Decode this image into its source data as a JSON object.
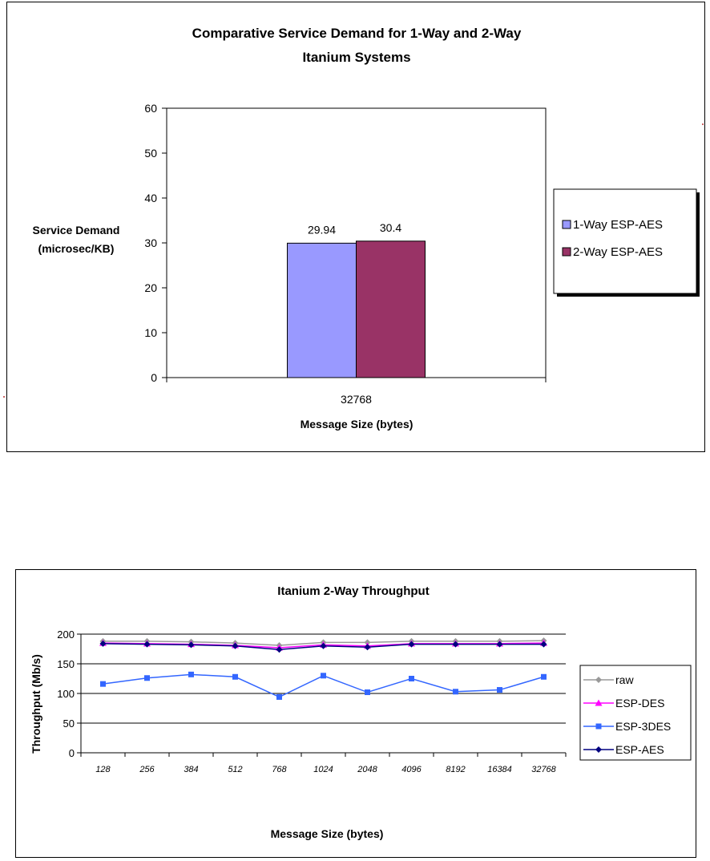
{
  "chart_data": [
    {
      "type": "bar",
      "title_lines": [
        "Comparative Service Demand for 1-Way and  2-Way",
        "Itanium Systems"
      ],
      "ylabel_lines": [
        "Service Demand",
        "(microsec/KB)"
      ],
      "xlabel": "Message Size (bytes)",
      "categories": [
        "32768"
      ],
      "series": [
        {
          "name": "1-Way ESP-AES",
          "values": [
            29.94
          ],
          "color": "#9999ff"
        },
        {
          "name": "2-Way ESP-AES",
          "values": [
            30.4
          ],
          "color": "#993366"
        }
      ],
      "data_labels": [
        "29.94",
        "30.4"
      ],
      "ylim": [
        0,
        60
      ],
      "yticks": [
        "0",
        "10",
        "20",
        "30",
        "40",
        "50",
        "60"
      ],
      "grid": false,
      "legend_position": "right"
    },
    {
      "type": "line",
      "title": "Itanium 2-Way Throughput",
      "ylabel": "Throughput (Mb/s)",
      "xlabel": "Message Size (bytes)",
      "categories": [
        "128",
        "256",
        "384",
        "512",
        "768",
        "1024",
        "2048",
        "4096",
        "8192",
        "16384",
        "32768"
      ],
      "series": [
        {
          "name": "raw",
          "color": "#999999",
          "marker": "diamond",
          "values": [
            188,
            188,
            187,
            185,
            181,
            186,
            186,
            188,
            188,
            188,
            189
          ]
        },
        {
          "name": "ESP-DES",
          "color": "#ff00ff",
          "marker": "triangle",
          "values": [
            185,
            184,
            183,
            181,
            177,
            182,
            180,
            184,
            184,
            184,
            185
          ]
        },
        {
          "name": "ESP-3DES",
          "color": "#3366ff",
          "marker": "square",
          "values": [
            116,
            126,
            132,
            128,
            94,
            130,
            102,
            125,
            103,
            106,
            128
          ]
        },
        {
          "name": "ESP-AES",
          "color": "#000080",
          "marker": "diamond",
          "values": [
            184,
            183,
            182,
            180,
            174,
            180,
            178,
            183,
            183,
            183,
            183
          ]
        }
      ],
      "ylim": [
        0,
        200
      ],
      "yticks": [
        "0",
        "50",
        "100",
        "150",
        "200"
      ],
      "grid": true,
      "plot_background": "#ffffff",
      "legend_position": "right"
    }
  ]
}
